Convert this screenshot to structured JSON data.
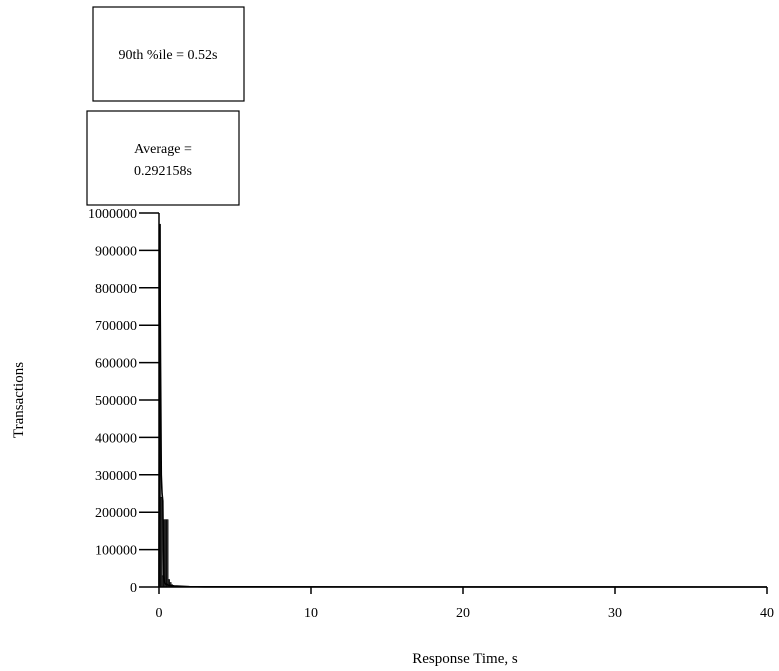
{
  "chart_data": {
    "type": "bar",
    "xlabel": "Response Time, s",
    "ylabel": "Transactions",
    "xlim": [
      0,
      40
    ],
    "ylim": [
      0,
      1000000
    ],
    "xticks": [
      0,
      10,
      20,
      30,
      40
    ],
    "yticks": [
      0,
      100000,
      200000,
      300000,
      400000,
      500000,
      600000,
      700000,
      800000,
      900000,
      1000000
    ],
    "grid": false,
    "bars": {
      "x": [
        0.05,
        0.15,
        0.25,
        0.35,
        0.45,
        0.55,
        0.65,
        0.75,
        0.85,
        0.95,
        1.05,
        1.15
      ],
      "y": [
        970000,
        240000,
        30000,
        180000,
        180000,
        180000,
        20000,
        12000,
        6000,
        3000,
        2000,
        1000
      ]
    },
    "curve": {
      "x": [
        0,
        0.05,
        0.1,
        0.15,
        0.2,
        0.25,
        0.3,
        0.35,
        0.4,
        0.5,
        0.6,
        0.8,
        1.0,
        1.5,
        2.0,
        3.0,
        40
      ],
      "y": [
        0,
        970000,
        600000,
        300000,
        250000,
        230000,
        30000,
        15000,
        9000,
        7000,
        5000,
        4000,
        3000,
        2000,
        1000,
        500,
        0
      ]
    },
    "annotations": [
      {
        "line1": "90th %ile = 0.52s",
        "line2": ""
      },
      {
        "line1": "Average =",
        "line2": "0.292158s"
      }
    ]
  }
}
